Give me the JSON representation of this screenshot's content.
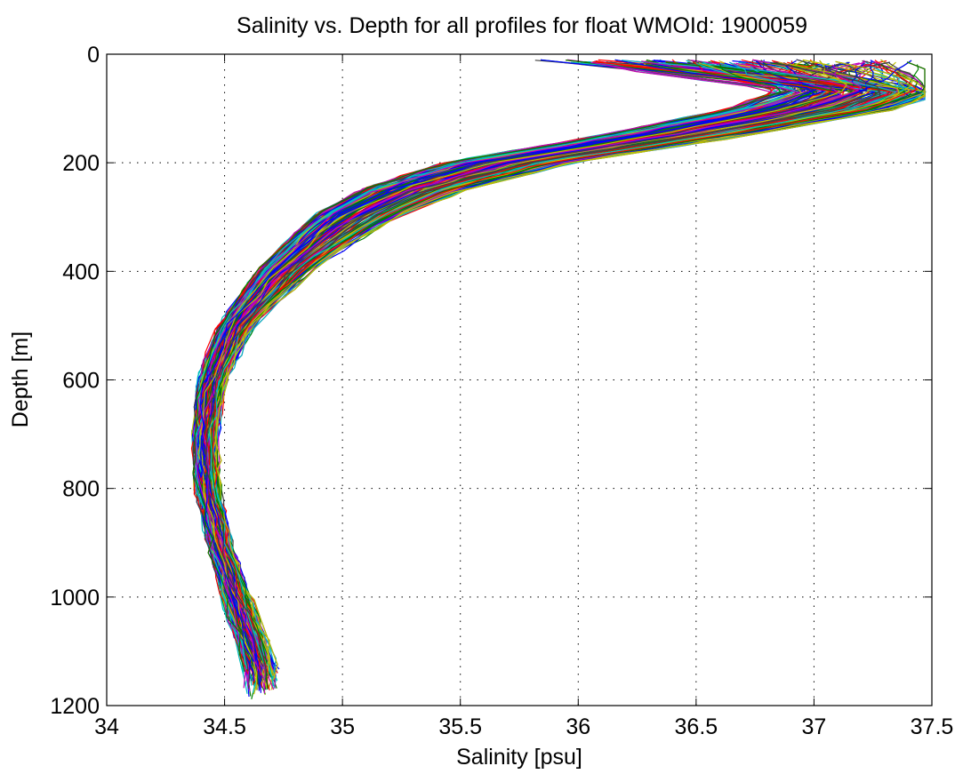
{
  "chart_data": {
    "type": "line",
    "title": "Salinity vs. Depth for all profiles for float WMOId: 1900059",
    "xlabel": "Salinity [psu]",
    "ylabel": "Depth [m]",
    "xlim": [
      34,
      37.5
    ],
    "ylim": [
      0,
      1200
    ],
    "y_reversed": true,
    "grid": true,
    "xticks": [
      "34",
      "34.5",
      "35",
      "35.5",
      "36",
      "36.5",
      "37",
      "37.5"
    ],
    "yticks": [
      "0",
      "200",
      "400",
      "600",
      "800",
      "1000",
      "1200"
    ],
    "profile_count": 240,
    "series_colors": [
      "#0000ff",
      "#008000",
      "#ff0000",
      "#00bfbf",
      "#bf00bf",
      "#bfbf00",
      "#404040"
    ],
    "mean_profile": {
      "depth": [
        10,
        60,
        100,
        150,
        200,
        250,
        300,
        400,
        500,
        600,
        700,
        800,
        900,
        1000,
        1100,
        1140
      ],
      "salinity": [
        37.2,
        37.25,
        37.0,
        36.4,
        35.7,
        35.3,
        35.05,
        34.75,
        34.55,
        34.45,
        34.42,
        34.43,
        34.48,
        34.55,
        34.63,
        34.66
      ]
    },
    "salinity_spread": {
      "depth": [
        10,
        60,
        100,
        150,
        200,
        250,
        300,
        400,
        500,
        600,
        700,
        800,
        900,
        1000,
        1100,
        1140
      ],
      "half_width": [
        0.8,
        0.4,
        0.4,
        0.35,
        0.3,
        0.25,
        0.2,
        0.12,
        0.08,
        0.06,
        0.05,
        0.05,
        0.05,
        0.06,
        0.07,
        0.07
      ]
    }
  }
}
